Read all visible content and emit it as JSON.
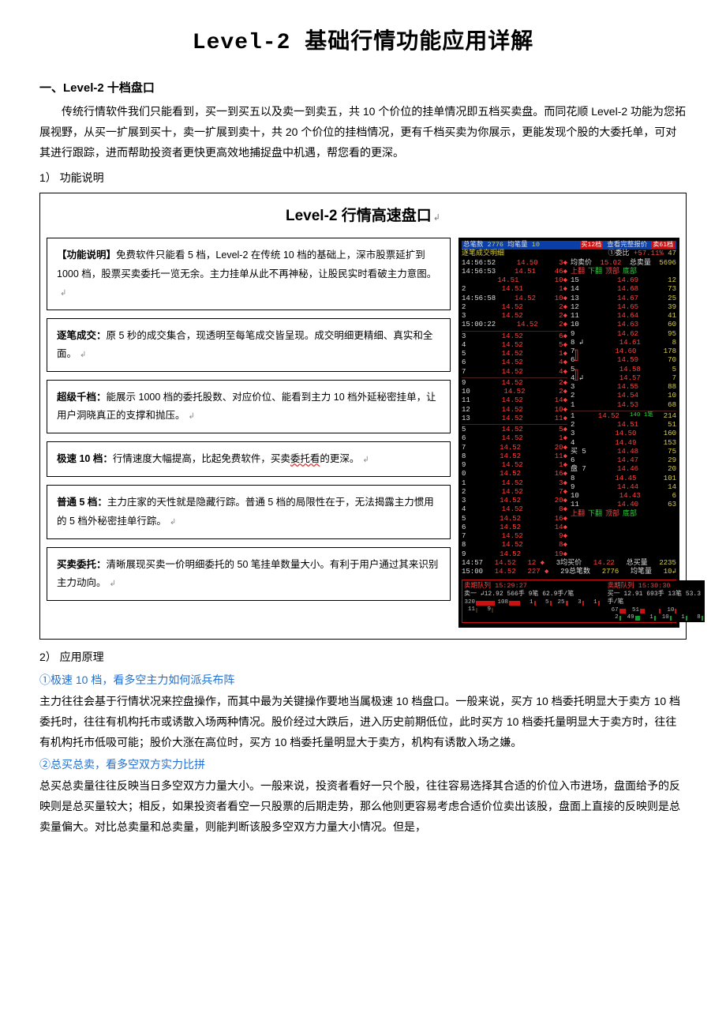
{
  "title": "Level-2 基础行情功能应用详解",
  "section1": {
    "heading": "一、Level-2 十档盘口",
    "para1": "传统行情软件我们只能看到，买一到买五以及卖一到卖五，共 10 个价位的挂单情况即五档买卖盘。而同花顺 Level-2 功能为您拓展视野，从买一扩展到买十，卖一扩展到卖十，共 20 个价位的挂档情况，更有千档买卖为你展示，更能发现个股的大委托单，可对其进行跟踪，进而帮助投资者更快更高效地捕捉盘中机遇，帮您看的更深。",
    "item1_label": "1） 功能说明"
  },
  "diagram": {
    "title": "Level-2 行情高速盘口",
    "title_suffix": "↲",
    "boxes": [
      {
        "title": "【功能说明】",
        "body_a": "免费软件只能看 5 档，Level-2 在传统 10 档的基础上，深市股票延扩到 1000 档，股票买卖委托一览无余。主力挂单从此不再神秘，让股民实时看破主力意图。",
        "j": "↲"
      },
      {
        "title": "逐笔成交：",
        "body_a": "原 5 秒的成交集合，现透明至每笔成交皆呈现。成交明细更精细、真实和全面。",
        "j": "↲"
      },
      {
        "title": "超级千档：",
        "body_a": "能展示 1000 档的委托股数、对应价位、能看到主力 10 档外延秘密挂单，让用户洞晓真正的支撑和抛压。",
        "j": "↲"
      },
      {
        "title": "极速 10 档：",
        "body_a": "行情速度大幅提高，比起免费软件，买卖",
        "wave": "委托看",
        "body_b": "的更深。",
        "j": "↲"
      },
      {
        "title": "普通 5 档：",
        "body_a": "主力庄家的天性就是隐藏行踪。普通 5 档的局限性在于，无法揭露主力惯用的 5 档外秘密挂单行踪。",
        "j": "↲"
      },
      {
        "title": "买卖委托：",
        "body_a": "清晰展现买卖一价明细委托的 50 笔挂单数量大小。有利于用户通过其来识别主力动向。",
        "j": "↲"
      }
    ],
    "shot": {
      "hdr_left": "总笔数",
      "hdr_num": "2776",
      "hdr_mid": "均笔量",
      "hdr_qty": "10",
      "hdr_buy": "买12档",
      "hdr_view": "查看完整报价",
      "hdr_sell": "卖61档",
      "sub_left": "逐笔成交明细",
      "sub_ratio_lbl": "①委比",
      "sub_ratio": "+57.11%",
      "sub_ratio_r": "47",
      "avg_sell_lbl": "均卖价",
      "avg_sell": "15.02",
      "tot_sell_lbl": "总卖量",
      "tot_sell": "5696",
      "tabs_l": [
        "上翻",
        "下翻",
        "顶部",
        "底部"
      ],
      "ticks_left": [
        {
          "t": "14:56:52",
          "p": "14.50",
          "q": "3"
        },
        {
          "t": "14:56:53",
          "p": "14.51",
          "q": "46"
        },
        {
          "t": "",
          "p": "14.51",
          "q": "10"
        },
        {
          "t": "2",
          "p": "14.51",
          "q": "1"
        },
        {
          "t": "14:56:58",
          "p": "14.52",
          "q": "10"
        },
        {
          "t": "2",
          "p": "14.52",
          "q": "2"
        },
        {
          "t": "3",
          "p": "14.52",
          "q": "2"
        },
        {
          "t": "15:00:22",
          "p": "14.52",
          "q": "2"
        },
        {
          "sep": true
        },
        {
          "t": "3",
          "p": "14.52",
          "q": "6"
        },
        {
          "t": "4",
          "p": "14.52",
          "q": "5"
        },
        {
          "t": "5",
          "p": "14.52",
          "q": "1"
        },
        {
          "t": "6",
          "p": "14.52",
          "q": "4"
        },
        {
          "t": "7",
          "p": "14.52",
          "q": "4"
        },
        {
          "sep": true
        },
        {
          "t": "9",
          "p": "14.52",
          "q": "2"
        },
        {
          "t": "10",
          "p": "14.52",
          "q": "2"
        },
        {
          "t": "11",
          "p": "14.52",
          "q": "14"
        },
        {
          "t": "12",
          "p": "14.52",
          "q": "10"
        },
        {
          "t": "13",
          "p": "14.52",
          "q": "11"
        },
        {
          "sep": true
        },
        {
          "t": "5",
          "p": "14.52",
          "q": "5"
        },
        {
          "t": "6",
          "p": "14.52",
          "q": "1"
        },
        {
          "t": "7",
          "p": "14.52",
          "q": "20"
        },
        {
          "t": "8",
          "p": "14.52",
          "q": "11"
        },
        {
          "t": "9",
          "p": "14.52",
          "q": "1"
        },
        {
          "t": "0",
          "p": "14.52",
          "q": "16"
        },
        {
          "t": "1",
          "p": "14.52",
          "q": "3"
        },
        {
          "t": "2",
          "p": "14.52",
          "q": "7"
        },
        {
          "t": "3",
          "p": "14.52",
          "q": "20"
        },
        {
          "t": "4",
          "p": "14.52",
          "q": "8"
        },
        {
          "t": "5",
          "p": "14.52",
          "q": "16"
        },
        {
          "t": "6",
          "p": "14.52",
          "q": "14"
        },
        {
          "t": "7",
          "p": "14.52",
          "q": "9"
        },
        {
          "t": "8",
          "p": "14.52",
          "q": "8"
        },
        {
          "t": "9",
          "p": "14.52",
          "q": "19"
        }
      ],
      "ladder_right_top": [
        {
          "n": "15",
          "p": "14.69",
          "q": "12"
        },
        {
          "n": "14",
          "p": "14.68",
          "q": "73"
        },
        {
          "n": "13",
          "p": "14.67",
          "q": "25"
        },
        {
          "n": "12",
          "p": "14.65",
          "q": "39"
        },
        {
          "n": "11",
          "p": "14.64",
          "q": "41"
        },
        {
          "n": "10",
          "p": "14.63",
          "q": "60"
        },
        {
          "n": "9",
          "p": "14.62",
          "q": "95"
        },
        {
          "n": "8 ↲",
          "p": "14.61",
          "q": "8"
        },
        {
          "n": "7",
          "p": "14.60",
          "q": "178"
        },
        {
          "n": "6",
          "p": "14.59",
          "q": "70"
        },
        {
          "n": "5",
          "p": "14.58",
          "q": "5"
        },
        {
          "n": "4 ↲",
          "p": "14.57",
          "q": "7"
        },
        {
          "n": "3",
          "p": "14.55",
          "q": "88"
        },
        {
          "n": "2",
          "p": "14.54",
          "q": "10"
        },
        {
          "n": "1",
          "p": "14.53",
          "q": "68"
        }
      ],
      "ladder_right_bot": [
        {
          "n": "1",
          "p": "14.52",
          "q": "214",
          "note": "140 1笔"
        },
        {
          "n": "2",
          "p": "14.51",
          "q": "51"
        },
        {
          "n": "3",
          "p": "14.50",
          "q": "160"
        },
        {
          "n": "4",
          "p": "14.49",
          "q": "153"
        },
        {
          "n": "买 5",
          "p": "14.48",
          "q": "75"
        },
        {
          "n": "6",
          "p": "14.47",
          "q": "29"
        },
        {
          "n": "盘 7",
          "p": "14.46",
          "q": "20"
        },
        {
          "n": "8",
          "p": "14.45",
          "q": "101"
        },
        {
          "n": "9",
          "p": "14.44",
          "q": "14"
        },
        {
          "n": "10",
          "p": "14.43",
          "q": "6"
        },
        {
          "n": "11",
          "p": "14.40",
          "q": "63"
        }
      ],
      "tabs_r": [
        "上翻",
        "下翻",
        "顶部",
        "底部"
      ],
      "bottom1": {
        "t": "14:57",
        "p": "14.52",
        "q": "12 ◆",
        "lbl": "3均买价",
        "v": "14.22",
        "l2": "总买量",
        "v2": "2235"
      },
      "bottom2": {
        "t": "15:00",
        "p": "14.52",
        "q": "227 ◆",
        "lbl": "29总笔数",
        "v": "2776",
        "l2": "均笔量",
        "v2": "10↲"
      },
      "barsL": {
        "title": "卖期队列 15:29:27",
        "line": "卖一 ↲12.92  566手  9笔  62.9手/笔",
        "nums": [
          "320",
          "108",
          "1",
          "5",
          "25",
          "3",
          "1"
        ],
        "nums2": [
          "11",
          "9"
        ]
      },
      "barsR": {
        "title": "卖期队列 15:30:30",
        "line": "买一  12.91  693手  13笔  53.3手/笔",
        "nums": [
          "67",
          "51",
          "",
          "10"
        ],
        "nums2": [
          "2",
          "49",
          "1",
          "10",
          "1",
          "8"
        ]
      }
    }
  },
  "section2": {
    "item2_label": "2）  应用原理",
    "h_a": "①极速 10 档，看多空主力如何派兵布阵",
    "p_a": "主力往往会基于行情状况来控盘操作，而其中最为关键操作要地当属极速 10 档盘口。一般来说，买方 10 档委托明显大于卖方 10 档委托时，往往有机构托市或诱散入场两种情况。股价经过大跌后，进入历史前期低位，此时买方 10 档委托量明显大于卖方时，往往有机构托市低吸可能；股价大涨在高位时，买方 10 档委托量明显大于卖方，机构有诱散入场之嫌。",
    "h_b": "②总买总卖，看多空双方实力比拼",
    "p_b": "总买总卖量往往反映当日多空双方力量大小。一般来说，投资者看好一只个股，往往容易选择其合适的价位入市进场，盘面给予的反映则是总买量较大；相反，如果投资者看空一只股票的后期走势，那么他则更容易考虑合适价位卖出该股，盘面上直接的反映则是总卖量偏大。对比总卖量和总卖量，则能判断该股多空双方力量大小情况。但是，"
  },
  "colors": {
    "link_blue": "#1f6fd4",
    "shot_bg": "#000000",
    "shot_yellow": "#d9cf44",
    "shot_red": "#ff4040",
    "shot_green": "#2ad23a",
    "hdr_blue": "#0a3ea8",
    "wave_red": "#d33"
  }
}
